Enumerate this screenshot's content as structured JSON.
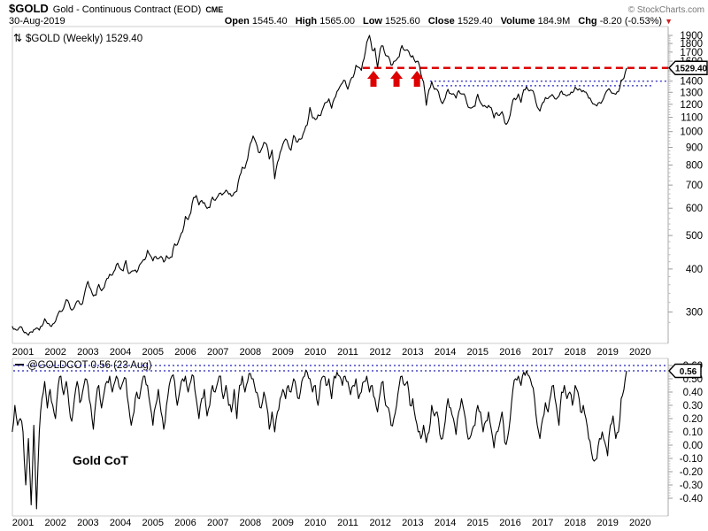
{
  "header": {
    "symbol": "$GOLD",
    "name": "Gold - Continuous Contract (EOD)",
    "exchange": "CME",
    "copyright": "© StockCharts.com",
    "date": "30-Aug-2019",
    "quote": [
      {
        "label": "Open",
        "value": "1545.40"
      },
      {
        "label": "High",
        "value": "1565.00"
      },
      {
        "label": "Low",
        "value": "1525.60"
      },
      {
        "label": "Close",
        "value": "1529.40"
      },
      {
        "label": "Volume",
        "value": "184.9M"
      }
    ],
    "chg": {
      "label": "Chg",
      "value": "-8.20 (-0.53%)",
      "arrow": "▼",
      "direction": "down"
    }
  },
  "main_chart": {
    "legend_icon": "⇅",
    "legend": "$GOLD (Weekly) 1529.40"
  },
  "cot_chart": {
    "legend": "@GOLDCOT 0.56 (23 Aug)",
    "label": "Gold CoT"
  },
  "colors": {
    "line": "#000000",
    "red": "#dd0000",
    "blue": "#2222bb",
    "axis": "#999999",
    "minor": "#bbbbbb",
    "border": "#cccccc",
    "axis_line": "#aaaaaa",
    "gray_text": "#777777"
  },
  "chart_data": [
    {
      "type": "line",
      "title": "$GOLD (Weekly)",
      "last_value": 1529.4,
      "y_scale": "log",
      "ylim": [
        240,
        2020
      ],
      "y_ticks": [
        1900,
        1800,
        1700,
        1600,
        1500,
        1400,
        1300,
        1200,
        1100,
        1000,
        900,
        800,
        700,
        600,
        500,
        400,
        300
      ],
      "x_label_years": [
        2001,
        2002,
        2003,
        2004,
        2005,
        2006,
        2007,
        2008,
        2009,
        2010,
        2011,
        2012,
        2013,
        2014,
        2015,
        2016,
        2017,
        2018,
        2019,
        2020
      ],
      "series": [
        {
          "name": "$GOLD weekly close",
          "x_start": 2000.6667,
          "x_step_years": 0.0833333,
          "values": [
            273,
            268,
            266,
            272,
            265,
            262,
            257,
            263,
            267,
            270,
            266,
            273,
            287,
            278,
            274,
            277,
            282,
            297,
            301,
            308,
            326,
            318,
            304,
            310,
            323,
            317,
            318,
            347,
            368,
            350,
            334,
            336,
            361,
            346,
            354,
            375,
            386,
            384,
            398,
            416,
            400,
            395,
            423,
            388,
            393,
            395,
            391,
            410,
            420,
            425,
            453,
            438,
            422,
            435,
            428,
            435,
            419,
            437,
            429,
            433,
            473,
            470,
            495,
            513,
            568,
            556,
            582,
            644,
            653,
            613,
            632,
            623,
            599,
            603,
            646,
            632,
            650,
            664,
            661,
            677,
            659,
            650,
            665,
            672,
            743,
            789,
            783,
            833,
            923,
            971,
            933,
            871,
            885,
            930,
            918,
            833,
            884,
            730,
            814,
            869,
            919,
            952,
            916,
            883,
            975,
            934,
            953,
            955,
            1008,
            1045,
            1175,
            1096,
            1083,
            1118,
            1115,
            1179,
            1215,
            1244,
            1169,
            1246,
            1307,
            1346,
            1383,
            1405,
            1327,
            1411,
            1439,
            1556,
            1536,
            1505,
            1628,
            1813,
            1900,
            1722,
            1746,
            1531,
            1737,
            1770,
            1662,
            1651,
            1558,
            1598,
            1615,
            1648,
            1776,
            1719,
            1726,
            1664,
            1660,
            1588,
            1598,
            1469,
            1394,
            1192,
            1323,
            1396,
            1326,
            1324,
            1253,
            1205,
            1251,
            1326,
            1288,
            1288,
            1250,
            1315,
            1285,
            1285,
            1208,
            1173,
            1175,
            1184,
            1283,
            1214,
            1183,
            1180,
            1191,
            1172,
            1095,
            1135,
            1114,
            1142,
            1061,
            1060,
            1118,
            1234,
            1237,
            1285,
            1215,
            1322,
            1349,
            1311,
            1317,
            1272,
            1178,
            1147,
            1212,
            1255,
            1247,
            1268,
            1266,
            1242,
            1267,
            1311,
            1283,
            1271,
            1280,
            1296,
            1345,
            1318,
            1323,
            1315,
            1301,
            1250,
            1224,
            1202,
            1187,
            1215,
            1226,
            1281,
            1321,
            1313,
            1292,
            1283,
            1305,
            1409,
            1428,
            1529.4
          ]
        }
      ],
      "annotations": {
        "price_label": "1529.40",
        "resistance_line": {
          "value": 1529.4,
          "style": "dashed",
          "x_start_year": 2011.46
        },
        "support_lines": [
          {
            "value": 1400,
            "x_start_year": 2013.53,
            "x_end_year": 2020.87
          },
          {
            "value": 1358,
            "x_start_year": 2013.75,
            "x_end_year": 2020.4
          }
        ],
        "arrows_up": {
          "years": [
            2011.79,
            2012.5,
            2013.13
          ],
          "value": 1500
        }
      }
    },
    {
      "type": "line",
      "title": "@GOLDCOT",
      "last_value": 0.56,
      "value_label": "0.56",
      "y_scale": "linear",
      "ylim": [
        -0.53,
        0.65
      ],
      "y_ticks": [
        0.6,
        0.5,
        0.4,
        0.3,
        0.2,
        0.1,
        0,
        -0.1,
        -0.2,
        -0.3,
        -0.4
      ],
      "dotted_levels": [
        0.6,
        0.56
      ],
      "x_label_years": [
        2001,
        2002,
        2003,
        2004,
        2005,
        2006,
        2007,
        2008,
        2009,
        2010,
        2011,
        2012,
        2013,
        2014,
        2015,
        2016,
        2017,
        2018,
        2019,
        2020
      ],
      "series": [
        {
          "name": "Gold CoT",
          "x_start": 2000.6667,
          "x_step_years": 0.0833333,
          "values": [
            0.1,
            0.3,
            0.15,
            0.2,
            0.1,
            -0.3,
            0.05,
            -0.45,
            0.15,
            -0.48,
            0.1,
            0.35,
            0.48,
            0.28,
            0.42,
            0.3,
            0.2,
            0.45,
            0.52,
            0.38,
            0.48,
            0.3,
            0.18,
            0.35,
            0.48,
            0.32,
            0.4,
            0.5,
            0.45,
            0.3,
            0.12,
            0.35,
            0.45,
            0.28,
            0.4,
            0.48,
            0.52,
            0.4,
            0.48,
            0.5,
            0.42,
            0.48,
            0.5,
            0.3,
            0.15,
            0.25,
            0.4,
            0.35,
            0.48,
            0.52,
            0.45,
            0.3,
            0.15,
            0.3,
            0.42,
            0.25,
            0.12,
            0.3,
            0.45,
            0.52,
            0.48,
            0.3,
            0.42,
            0.5,
            0.52,
            0.4,
            0.48,
            0.52,
            0.35,
            0.2,
            0.35,
            0.42,
            0.22,
            0.3,
            0.45,
            0.4,
            0.48,
            0.52,
            0.35,
            0.45,
            0.3,
            0.25,
            0.42,
            0.2,
            0.45,
            0.52,
            0.4,
            0.48,
            0.54,
            0.5,
            0.4,
            0.35,
            0.28,
            0.4,
            0.3,
            0.12,
            0.25,
            0.1,
            0.25,
            0.35,
            0.42,
            0.35,
            0.45,
            0.4,
            0.5,
            0.42,
            0.35,
            0.48,
            0.52,
            0.55,
            0.5,
            0.4,
            0.45,
            0.3,
            0.48,
            0.52,
            0.45,
            0.5,
            0.35,
            0.52,
            0.55,
            0.52,
            0.45,
            0.52,
            0.48,
            0.38,
            0.45,
            0.5,
            0.35,
            0.4,
            0.48,
            0.52,
            0.4,
            0.45,
            0.35,
            0.25,
            0.4,
            0.48,
            0.3,
            0.28,
            0.15,
            0.2,
            0.3,
            0.45,
            0.52,
            0.45,
            0.48,
            0.3,
            0.35,
            0.2,
            0.1,
            0.05,
            0.15,
            0.02,
            0.1,
            0.3,
            0.22,
            0.25,
            0.08,
            0.05,
            0.18,
            0.35,
            0.28,
            0.2,
            0.08,
            0.25,
            0.35,
            0.25,
            0.1,
            0.05,
            0.12,
            0.15,
            0.3,
            0.25,
            0.1,
            0.18,
            0.25,
            0.12,
            -0.02,
            0.1,
            0.15,
            0.25,
            0.02,
            0.05,
            0.2,
            0.42,
            0.5,
            0.52,
            0.45,
            0.55,
            0.56,
            0.52,
            0.45,
            0.35,
            0.15,
            0.05,
            0.2,
            0.32,
            0.25,
            0.38,
            0.45,
            0.3,
            0.15,
            0.4,
            0.45,
            0.35,
            0.4,
            0.3,
            0.45,
            0.4,
            0.25,
            0.3,
            0.2,
            0.05,
            -0.05,
            -0.12,
            -0.1,
            0.05,
            0.1,
            0.02,
            -0.08,
            0.15,
            0.22,
            0.05,
            0.1,
            0.35,
            0.42,
            0.56
          ]
        }
      ]
    }
  ]
}
